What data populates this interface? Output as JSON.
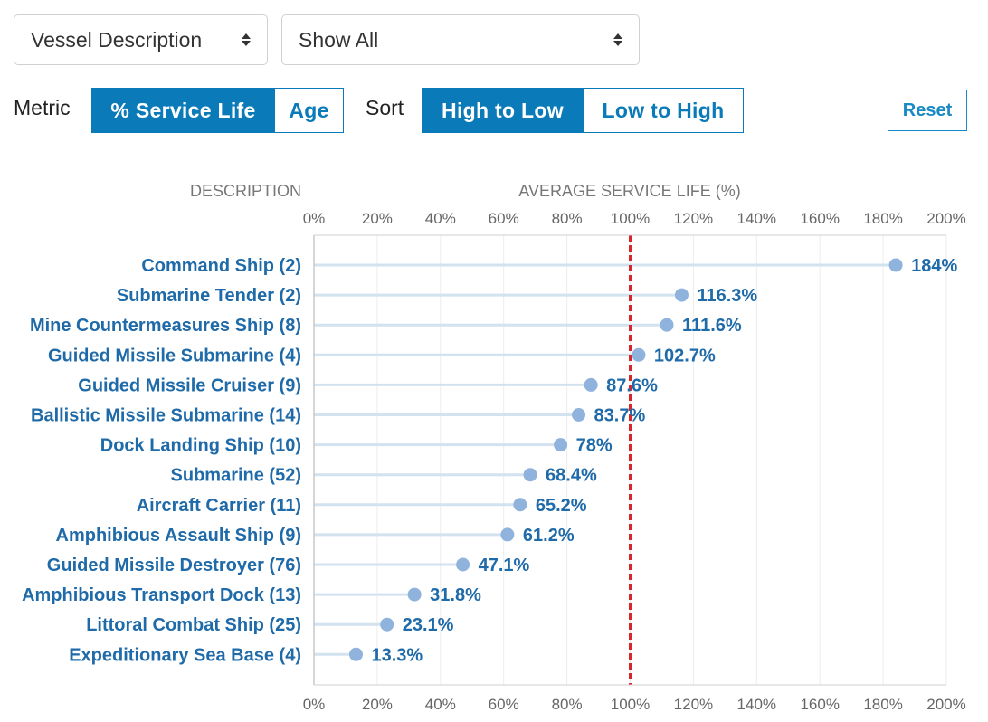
{
  "controls": {
    "group_select": {
      "value": "Vessel Description"
    },
    "filter_select": {
      "value": "Show All"
    },
    "metric": {
      "label": "Metric",
      "options": [
        "% Service Life",
        "Age"
      ],
      "active": 0
    },
    "sort": {
      "label": "Sort",
      "options": [
        "High to Low",
        "Low to High"
      ],
      "active": 0
    },
    "reset_label": "Reset"
  },
  "colors": {
    "accent": "#0a7ab8",
    "label": "#1f6aa8",
    "dot": "#8fb3dc",
    "stem": "#d3e2ef",
    "reference_line": "#d9262c"
  },
  "chart_data": {
    "type": "scatter",
    "description_header": "DESCRIPTION",
    "xlabel": "AVERAGE SERVICE LIFE (%)",
    "xlim": [
      0,
      200
    ],
    "xticks": [
      0,
      20,
      40,
      60,
      80,
      100,
      120,
      140,
      160,
      180,
      200
    ],
    "xtick_labels": [
      "0%",
      "20%",
      "40%",
      "60%",
      "80%",
      "100%",
      "120%",
      "140%",
      "160%",
      "180%",
      "200%"
    ],
    "reference_x": 100,
    "grid": "vertical",
    "categories": [
      "Command Ship (2)",
      "Submarine Tender (2)",
      "Mine Countermeasures Ship (8)",
      "Guided Missile Submarine (4)",
      "Guided Missile Cruiser (9)",
      "Ballistic Missile Submarine (14)",
      "Dock Landing Ship (10)",
      "Submarine (52)",
      "Aircraft Carrier (11)",
      "Amphibious Assault Ship (9)",
      "Guided Missile Destroyer (76)",
      "Amphibious Transport Dock (13)",
      "Littoral Combat Ship (25)",
      "Expeditionary Sea Base (4)"
    ],
    "values": [
      184,
      116.3,
      111.6,
      102.7,
      87.6,
      83.7,
      78,
      68.4,
      65.2,
      61.2,
      47.1,
      31.8,
      23.1,
      13.3
    ],
    "value_labels": [
      "184%",
      "116.3%",
      "111.6%",
      "102.7%",
      "87.6%",
      "83.7%",
      "78%",
      "68.4%",
      "65.2%",
      "61.2%",
      "47.1%",
      "31.8%",
      "23.1%",
      "13.3%"
    ]
  }
}
